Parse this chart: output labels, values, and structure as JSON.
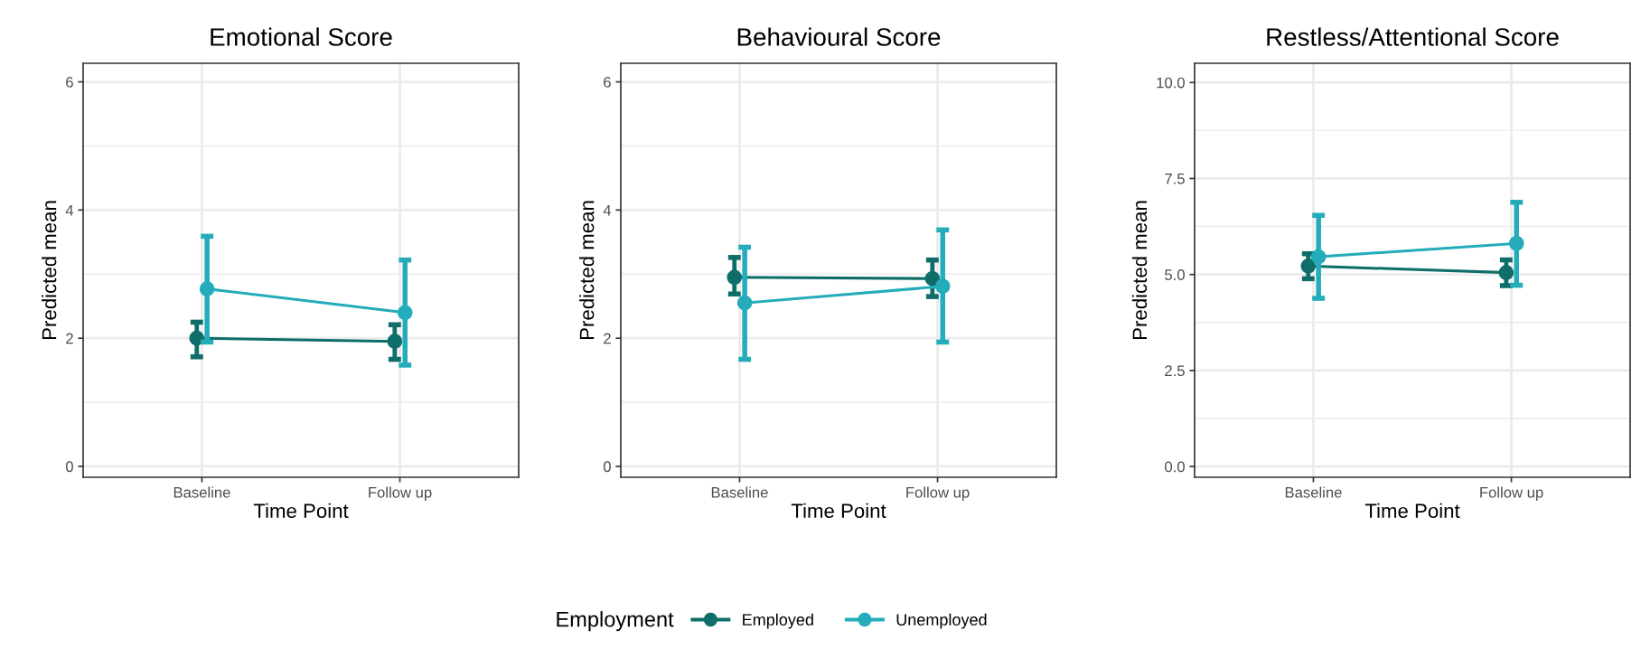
{
  "chart_data": [
    {
      "type": "line",
      "title": "Emotional Score",
      "xlabel": "Time Point",
      "ylabel": "Predicted mean",
      "categories": [
        "Baseline",
        "Follow up"
      ],
      "ylim": [
        -0.17,
        6.29
      ],
      "yticks": [
        0,
        2,
        4,
        6
      ],
      "grid": true,
      "marker": "circle",
      "legend": "bottom",
      "legend_title": "Employment",
      "series": [
        {
          "name": "Employed",
          "color": "#0f6e6a",
          "values": [
            2.0,
            1.95
          ],
          "errors": [
            [
              1.71,
              2.25
            ],
            [
              1.67,
              2.21
            ]
          ]
        },
        {
          "name": "Unemployed",
          "color": "#24acbb",
          "values": [
            2.77,
            2.4
          ],
          "errors": [
            [
              1.94,
              3.59
            ],
            [
              1.58,
              3.22
            ]
          ]
        }
      ]
    },
    {
      "type": "line",
      "title": "Behavioural Score",
      "xlabel": "Time Point",
      "ylabel": "Predicted mean",
      "categories": [
        "Baseline",
        "Follow up"
      ],
      "ylim": [
        -0.17,
        6.29
      ],
      "yticks": [
        0,
        2,
        4,
        6
      ],
      "grid": true,
      "marker": "circle",
      "series": [
        {
          "name": "Employed",
          "color": "#0f6e6a",
          "values": [
            2.95,
            2.93
          ],
          "errors": [
            [
              2.69,
              3.26
            ],
            [
              2.65,
              3.22
            ]
          ]
        },
        {
          "name": "Unemployed",
          "color": "#24acbb",
          "values": [
            2.55,
            2.81
          ],
          "errors": [
            [
              1.67,
              3.42
            ],
            [
              1.94,
              3.69
            ]
          ]
        }
      ]
    },
    {
      "type": "line",
      "title": "Restless/Attentional Score",
      "xlabel": "Time Point",
      "ylabel": "Predicted mean",
      "categories": [
        "Baseline",
        "Follow up"
      ],
      "ylim": [
        -0.28,
        10.5
      ],
      "yticks": [
        {
          "value": 0,
          "label": "0.0"
        },
        2.5,
        {
          "value": 5,
          "label": "5.0"
        },
        7.5,
        {
          "value": 10,
          "label": "10.0"
        }
      ],
      "grid": true,
      "marker": "circle",
      "series": [
        {
          "name": "Employed",
          "color": "#0f6e6a",
          "values": [
            5.22,
            5.05
          ],
          "errors": [
            [
              4.89,
              5.54
            ],
            [
              4.71,
              5.38
            ]
          ]
        },
        {
          "name": "Unemployed",
          "color": "#24acbb",
          "values": [
            5.46,
            5.81
          ],
          "errors": [
            [
              4.38,
              6.54
            ],
            [
              4.72,
              6.88
            ]
          ]
        }
      ]
    }
  ]
}
